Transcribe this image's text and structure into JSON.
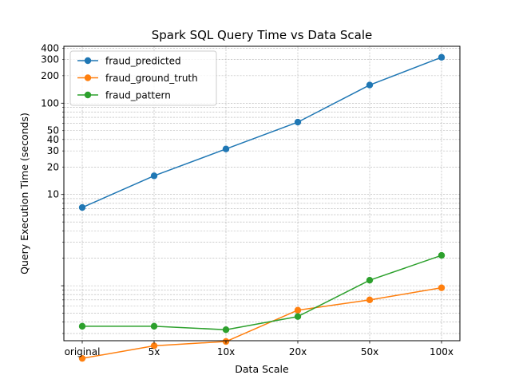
{
  "chart_data": {
    "type": "line",
    "title": "Spark SQL Query Time vs Data Scale",
    "xlabel": "Data Scale",
    "ylabel": "Query Execution Time (seconds)",
    "yscale": "log",
    "ylim": [
      0.25,
      420
    ],
    "grid": true,
    "legend_position": "top-left",
    "categories": [
      "original",
      "5x",
      "10x",
      "20x",
      "50x",
      "100x"
    ],
    "y_ticks": [
      10,
      20,
      30,
      40,
      50,
      100,
      200,
      300,
      400
    ],
    "series": [
      {
        "name": "fraud_predicted",
        "color": "#1f77b4",
        "values": [
          7.2,
          16,
          31.5,
          62,
          158,
          318
        ]
      },
      {
        "name": "fraud_ground_truth",
        "color": "#ff7f0e",
        "values": [
          0.16,
          0.22,
          0.245,
          0.54,
          0.7,
          0.95
        ]
      },
      {
        "name": "fraud_pattern",
        "color": "#2ca02c",
        "values": [
          0.36,
          0.36,
          0.33,
          0.46,
          1.15,
          2.15
        ]
      }
    ]
  }
}
